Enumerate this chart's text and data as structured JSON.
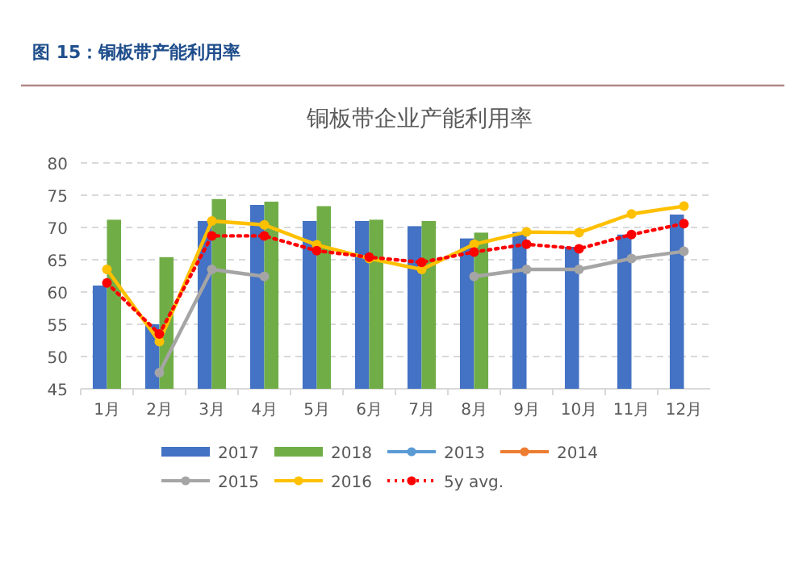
{
  "chart_data": {
    "type": "bar",
    "title": "铜板带企业产能利用率",
    "subtitle": "图 15：铜板带产能利用率",
    "categories": [
      "1月",
      "2月",
      "3月",
      "4月",
      "5月",
      "6月",
      "7月",
      "8月",
      "9月",
      "10月",
      "11月",
      "12月"
    ],
    "series": [
      {
        "name": "2017",
        "color": "#4472c4",
        "values": [
          61,
          55,
          71,
          73.5,
          71,
          71,
          70.2,
          68.3,
          69.3,
          67,
          68.9,
          72
        ]
      },
      {
        "name": "2018",
        "color": "#70ad47",
        "values": [
          71.2,
          65.4,
          74.4,
          74,
          73.3,
          71.2,
          71,
          69.2,
          null,
          null,
          null,
          null
        ]
      },
      {
        "name": "2013",
        "type": "line",
        "color": "#5b9bd5",
        "values": [
          null,
          null,
          null,
          null,
          null,
          null,
          null,
          null,
          null,
          null,
          null,
          null
        ]
      },
      {
        "name": "2014",
        "type": "line",
        "color": "#ed7d31",
        "values": [
          null,
          null,
          null,
          null,
          null,
          null,
          null,
          null,
          null,
          null,
          null,
          null
        ]
      },
      {
        "name": "2015",
        "type": "line",
        "color": "#a5a5a5",
        "values": [
          null,
          47.5,
          63.5,
          62.4,
          null,
          null,
          null,
          62.4,
          63.5,
          63.5,
          65.2,
          66.3
        ]
      },
      {
        "name": "2016",
        "type": "line",
        "color": "#ffc000",
        "values": [
          63.5,
          52.3,
          71,
          70.4,
          67.3,
          65.2,
          63.5,
          67.4,
          69.3,
          69.2,
          72.1,
          73.3
        ]
      },
      {
        "name": "5y avg.",
        "type": "line",
        "color": "#ff0000",
        "line_style": "dotted",
        "values": [
          61.4,
          53.5,
          68.7,
          68.7,
          66.4,
          65.4,
          64.6,
          66.2,
          67.4,
          66.7,
          68.9,
          70.6
        ]
      }
    ],
    "ylim": [
      45,
      80
    ],
    "yticks": [
      45,
      50,
      55,
      60,
      65,
      70,
      75,
      80
    ],
    "grid": "y",
    "legend": "bottom",
    "marker": "circle"
  }
}
